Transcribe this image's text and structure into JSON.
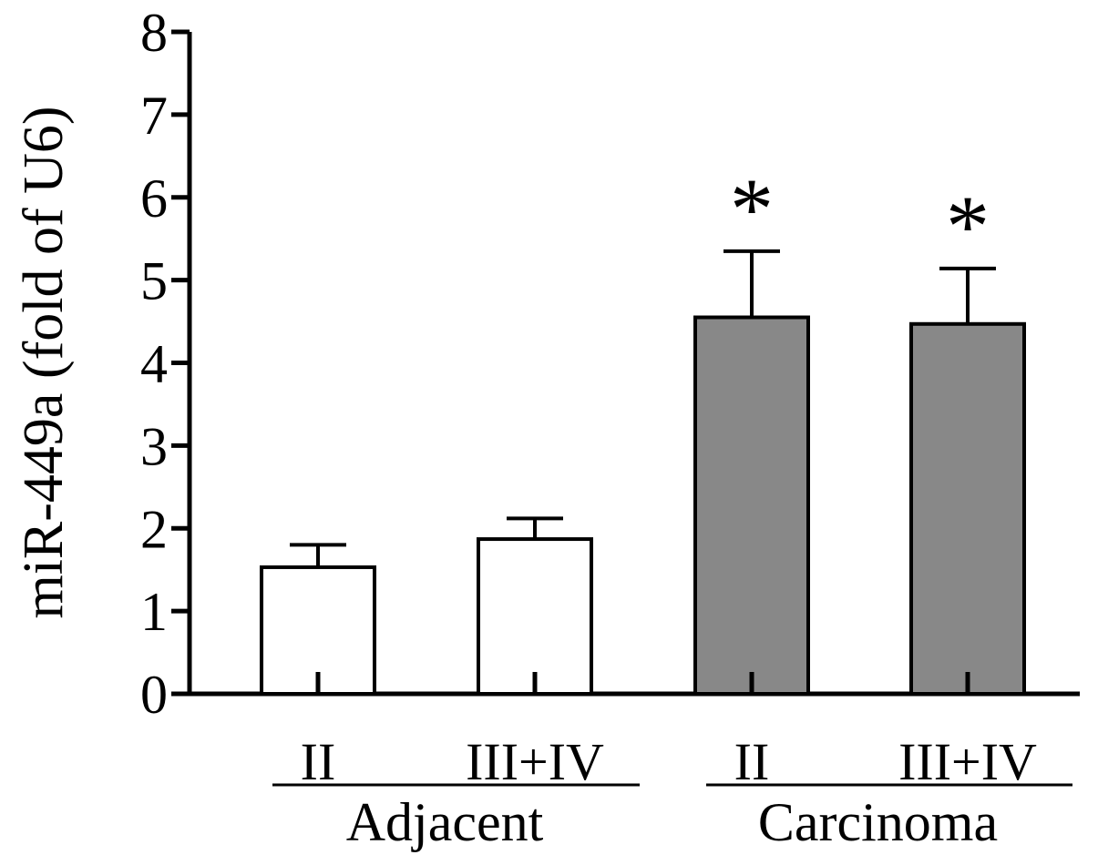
{
  "chart_data": {
    "type": "bar",
    "categories": [
      "II",
      "III+IV",
      "II",
      "III+IV"
    ],
    "groups": [
      {
        "label": "Adjacent",
        "categories": [
          0,
          1
        ]
      },
      {
        "label": "Carcinoma",
        "categories": [
          2,
          3
        ]
      }
    ],
    "values": [
      1.53,
      1.87,
      4.55,
      4.47
    ],
    "errors": [
      0.27,
      0.25,
      0.8,
      0.67
    ],
    "significance": [
      "",
      "",
      "*",
      "*"
    ],
    "bar_colors": [
      "#ffffff",
      "#ffffff",
      "#888888",
      "#888888"
    ],
    "ylabel": "miR-449a (fold of U6)",
    "ylim": [
      0,
      8
    ],
    "yticks": [
      "0",
      "1",
      "2",
      "3",
      "4",
      "5",
      "6",
      "7",
      "8"
    ],
    "grid": false,
    "legend": "none"
  }
}
